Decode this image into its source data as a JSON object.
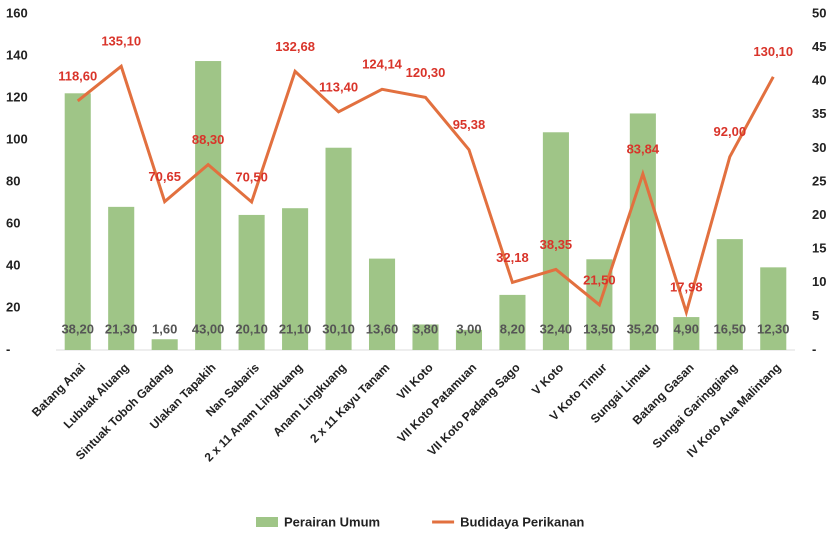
{
  "chart_data": {
    "type": "bar_line",
    "categories": [
      "Batang Anai",
      "Lubuak Aluang",
      "Sintuak Toboh Gadang",
      "Ulakan Tapakih",
      "Nan Sabaris",
      "2 x 11 Anam Lingkuang",
      "Anam Lingkuang",
      "2 x 11 Kayu Tanam",
      "VII Koto",
      "VII Koto Patamuan",
      "VII Koto Padang Sago",
      "V Koto",
      "V Koto Timur",
      "Sungai Limau",
      "Batang  Gasan",
      "Sungai Garinggiang",
      "IV Koto Aua Malintang"
    ],
    "series": [
      {
        "name": "Perairan Umum",
        "type": "bar",
        "axis": "y2",
        "color": "#9fc587",
        "values": [
          38.2,
          21.3,
          1.6,
          43.0,
          20.1,
          21.1,
          30.1,
          13.6,
          3.8,
          3.0,
          8.2,
          32.4,
          13.5,
          35.2,
          4.9,
          16.5,
          12.3
        ],
        "value_labels": [
          "38,20",
          "21,30",
          "1,60",
          "43,00",
          "20,10",
          "21,10",
          "30,10",
          "13,60",
          "3,80",
          "3,00",
          "8,20",
          "32,40",
          "13,50",
          "35,20",
          "4,90",
          "16,50",
          "12,30"
        ]
      },
      {
        "name": "Budidaya Perikanan",
        "type": "line",
        "color": "#e2703f",
        "values": [
          118.6,
          135.1,
          70.65,
          88.3,
          70.5,
          132.68,
          113.4,
          124.14,
          120.3,
          95.38,
          32.18,
          38.35,
          21.5,
          83.84,
          17.98,
          92.0,
          130.1
        ],
        "value_labels": [
          "118,60",
          "135,10",
          "70,65",
          "88,30",
          "70,50",
          "132,68",
          "113,40",
          "124,14",
          "120,30",
          "95,38",
          "32,18",
          "38,35",
          "21,50",
          "83,84",
          "17,98",
          "92,00",
          "130,10"
        ]
      }
    ],
    "ylim": [
      0,
      160
    ],
    "yticks": [
      {
        "value": 0,
        "label": "-"
      },
      20,
      40,
      60,
      80,
      100,
      120,
      140,
      160
    ],
    "y2lim": [
      0,
      50
    ],
    "y2ticks": [
      {
        "value": 0,
        "label": "-"
      },
      5,
      10,
      15,
      20,
      25,
      30,
      35,
      40,
      45,
      50
    ],
    "legend": "bottom"
  }
}
